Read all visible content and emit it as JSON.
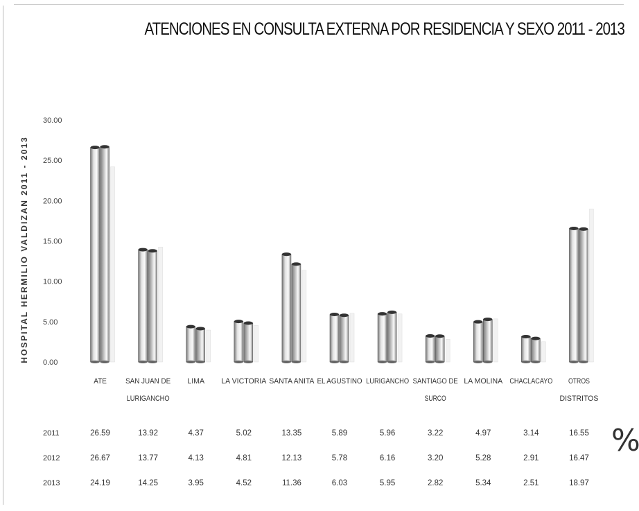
{
  "chart_data": {
    "type": "bar",
    "title": "ATENCIONES EN CONSULTA EXTERNA POR RESIDENCIA Y SEXO 2011 - 2013",
    "side_label": "HOSPITAL HERMILIO VALDIZAN 2011 - 2013",
    "unit_label": "%",
    "ylim": [
      0,
      30
    ],
    "y_ticks": [
      "0.00",
      "5.00",
      "10.00",
      "15.00",
      "20.00",
      "25.00",
      "30.00"
    ],
    "grid": false,
    "legend": "data-table-below",
    "categories": [
      [
        "ATE"
      ],
      [
        "SAN JUAN DE",
        "LURIGANCHO"
      ],
      [
        "LIMA"
      ],
      [
        "LA VICTORIA"
      ],
      [
        "SANTA ANITA"
      ],
      [
        "EL AGUSTINO"
      ],
      [
        "LURIGANCHO"
      ],
      [
        "SANTIAGO DE",
        "SURCO"
      ],
      [
        "LA MOLINA"
      ],
      [
        "CHACLACAYO"
      ],
      [
        "OTROS",
        "DISTRITOS"
      ]
    ],
    "series": [
      {
        "name": "2011",
        "color": "#e3e3e3",
        "values": [
          26.59,
          13.92,
          4.37,
          5.02,
          13.35,
          5.89,
          5.96,
          3.22,
          4.97,
          3.14,
          16.55
        ]
      },
      {
        "name": "2012",
        "color": "#b8b8b8",
        "values": [
          26.67,
          13.77,
          4.13,
          4.81,
          12.13,
          5.78,
          6.16,
          3.2,
          5.28,
          2.91,
          16.47
        ]
      },
      {
        "name": "2013",
        "color": "#d0d0d0",
        "values": [
          24.19,
          14.25,
          3.95,
          4.52,
          11.36,
          6.03,
          5.95,
          2.82,
          5.34,
          2.51,
          18.97
        ]
      }
    ]
  }
}
